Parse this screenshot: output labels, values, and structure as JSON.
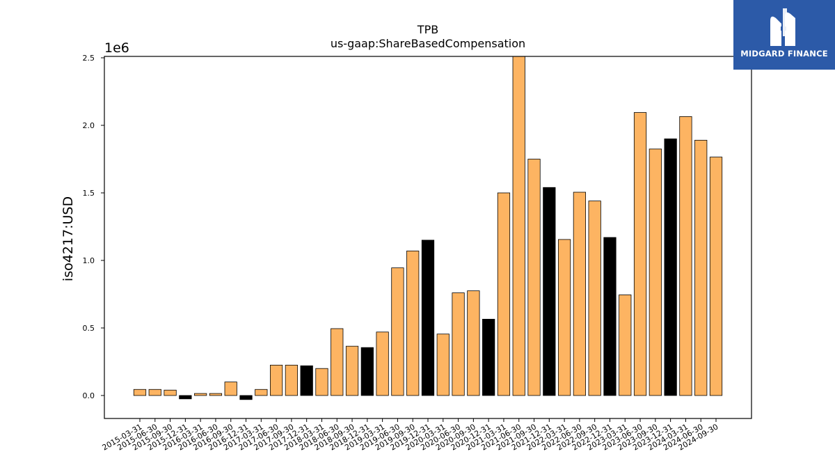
{
  "chart_data": {
    "type": "bar",
    "title": "TPB",
    "subtitle": "us-gaap:ShareBasedCompensation",
    "ylabel": "iso4217:USD",
    "xlabel": "",
    "y_multiplier": "1e6",
    "ylim": [
      -0.17,
      2.52
    ],
    "yticks": [
      0.0,
      0.5,
      1.0,
      1.5,
      2.0,
      2.5
    ],
    "ytick_labels": [
      "0.0",
      "0.5",
      "1.0",
      "1.5",
      "2.0",
      "2.5"
    ],
    "categories": [
      "2015-03-31",
      "2015-06-30",
      "2015-09-30",
      "2015-12-31",
      "2016-03-31",
      "2016-06-30",
      "2016-09-30",
      "2016-12-31",
      "2017-03-31",
      "2017-06-30",
      "2017-09-30",
      "2017-12-31",
      "2018-03-31",
      "2018-06-30",
      "2018-09-30",
      "2018-12-31",
      "2019-03-31",
      "2019-06-30",
      "2019-09-30",
      "2019-12-31",
      "2020-03-31",
      "2020-06-30",
      "2020-09-30",
      "2020-12-31",
      "2021-03-31",
      "2021-06-30",
      "2021-09-30",
      "2021-12-31",
      "2022-03-31",
      "2022-06-30",
      "2022-09-30",
      "2022-12-31",
      "2023-03-31",
      "2023-06-30",
      "2023-09-30",
      "2023-12-31",
      "2024-03-31",
      "2024-06-30",
      "2024-09-30"
    ],
    "values": [
      0.045,
      0.045,
      0.04,
      -0.025,
      0.015,
      0.015,
      0.1,
      -0.03,
      0.045,
      0.225,
      0.225,
      0.22,
      0.2,
      0.495,
      0.365,
      0.355,
      0.47,
      0.945,
      1.07,
      1.15,
      0.455,
      0.76,
      0.775,
      0.565,
      1.5,
      2.52,
      1.75,
      1.54,
      1.155,
      1.505,
      1.44,
      1.17,
      0.745,
      2.095,
      1.825,
      1.9,
      2.065,
      1.89,
      1.765
    ],
    "bar_colors": [
      "#fdb462",
      "#fdb462",
      "#fdb462",
      "#000000",
      "#fdb462",
      "#fdb462",
      "#fdb462",
      "#000000",
      "#fdb462",
      "#fdb462",
      "#fdb462",
      "#000000",
      "#fdb462",
      "#fdb462",
      "#fdb462",
      "#000000",
      "#fdb462",
      "#fdb462",
      "#fdb462",
      "#000000",
      "#fdb462",
      "#fdb462",
      "#fdb462",
      "#000000",
      "#fdb462",
      "#fdb462",
      "#fdb462",
      "#000000",
      "#fdb462",
      "#fdb462",
      "#fdb462",
      "#000000",
      "#fdb462",
      "#fdb462",
      "#fdb462",
      "#000000",
      "#fdb462",
      "#fdb462",
      "#fdb462"
    ],
    "grid": false,
    "legend": "none"
  },
  "logo": {
    "text": "MIDGARD FINANCE",
    "background": "#2c5aa8",
    "icon": "midgard-logo-icon"
  }
}
